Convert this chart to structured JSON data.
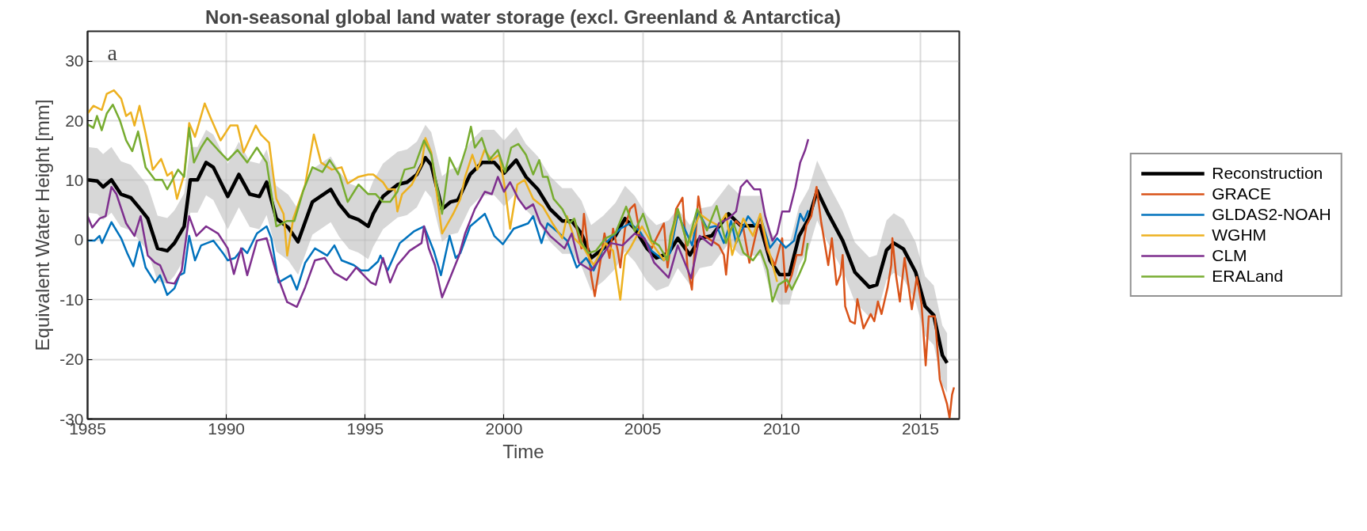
{
  "chart_data": {
    "type": "line",
    "title": "Non-seasonal global land water storage (excl. Greenland & Antarctica)",
    "xlabel": "Time",
    "ylabel": "Equivalent Water Height [mm]",
    "annotations": [
      "a"
    ],
    "xlim": [
      1985,
      2016.4
    ],
    "xticks": [
      1985,
      1990,
      1995,
      2000,
      2005,
      2010,
      2015
    ],
    "ylim": [
      -30,
      35
    ],
    "yticks": [
      -30,
      -20,
      -10,
      0,
      10,
      20,
      30
    ],
    "grid": true,
    "legend": "right",
    "line_style": "solid",
    "series": [
      {
        "name": "Reconstruction",
        "color": "#000000",
        "x": [
          1985.0,
          1985.35,
          1985.56,
          1985.86,
          1986.2,
          1986.56,
          1986.9,
          1987.17,
          1987.52,
          1987.87,
          1988.13,
          1988.48,
          1988.7,
          1988.96,
          1989.27,
          1989.53,
          1990.05,
          1990.45,
          1990.84,
          1991.19,
          1991.45,
          1991.8,
          1992.23,
          1992.58,
          1993.1,
          1993.76,
          1994.07,
          1994.42,
          1994.76,
          1995.11,
          1995.29,
          1995.64,
          1996.17,
          1996.51,
          1996.86,
          1997.17,
          1997.38,
          1997.77,
          1998.08,
          1998.34,
          1998.78,
          1999.21,
          1999.65,
          2000.0,
          2000.44,
          2000.79,
          2001.22,
          2001.66,
          2002.1,
          2002.44,
          2002.79,
          2003.14,
          2003.58,
          2004.01,
          2004.36,
          2004.71,
          2005.15,
          2005.49,
          2005.93,
          2006.26,
          2006.7,
          2007.05,
          2007.48,
          2008.09,
          2008.53,
          2008.97,
          2009.23,
          2009.58,
          2009.93,
          2010.28,
          2010.63,
          2010.98,
          2011.28,
          2011.68,
          2012.2,
          2012.64,
          2013.16,
          2013.43,
          2013.78,
          2014.04,
          2014.39,
          2014.83,
          2015.17,
          2015.48,
          2015.79,
          2015.96
        ],
        "values": [
          10.1,
          9.9,
          8.9,
          10.1,
          7.7,
          7.1,
          5.2,
          3.6,
          -1.4,
          -1.8,
          -0.5,
          2.3,
          10.1,
          10.1,
          13.0,
          12.2,
          7.3,
          11.0,
          7.7,
          7.3,
          9.7,
          3.6,
          2.1,
          -0.3,
          6.4,
          8.5,
          6.0,
          4.0,
          3.4,
          2.3,
          4.4,
          7.3,
          9.3,
          9.7,
          11.0,
          13.8,
          12.6,
          5.2,
          6.4,
          6.7,
          11.0,
          13.0,
          13.0,
          11.2,
          13.4,
          10.6,
          8.5,
          5.2,
          3.2,
          3.2,
          1.1,
          -3.0,
          -1.4,
          0.7,
          3.6,
          1.9,
          -1.4,
          -3.0,
          -2.2,
          0.3,
          -2.5,
          0.3,
          0.7,
          4.4,
          2.4,
          2.4,
          2.4,
          -3.4,
          -5.8,
          -5.8,
          0.7,
          3.6,
          8.3,
          4.4,
          -0.1,
          -5.4,
          -7.9,
          -7.5,
          -1.7,
          -0.5,
          -1.5,
          -5.4,
          -11.1,
          -12.6,
          -19.3,
          -20.6
        ],
        "lower": [
          4.6,
          4.4,
          3.4,
          4.6,
          2.2,
          1.6,
          -0.3,
          -1.9,
          -6.9,
          -7.3,
          -6.0,
          -3.2,
          4.6,
          4.6,
          7.5,
          6.7,
          1.8,
          5.5,
          2.2,
          1.8,
          4.2,
          -1.9,
          -3.4,
          -5.8,
          0.9,
          3.0,
          0.5,
          -1.5,
          -2.1,
          -3.2,
          -1.1,
          1.8,
          3.8,
          4.2,
          5.5,
          8.3,
          7.1,
          -0.3,
          0.9,
          1.2,
          5.5,
          7.5,
          7.5,
          5.7,
          7.9,
          5.1,
          3.0,
          -0.3,
          -2.3,
          -2.3,
          -4.4,
          -8.5,
          -6.9,
          -4.8,
          -1.9,
          -3.6,
          -6.9,
          -8.5,
          -7.7,
          -4.7,
          -7.5,
          -4.7,
          -4.3,
          -0.6,
          -2.6,
          -2.6,
          -2.6,
          -8.4,
          -10.8,
          -10.8,
          -4.3,
          -1.4,
          3.3,
          -0.6,
          -5.1,
          -10.4,
          -12.9,
          -12.5,
          -6.7,
          -5.5,
          -6.5,
          -10.4,
          -16.1,
          -17.6,
          -24.3,
          -25.6
        ],
        "upper": [
          15.6,
          15.4,
          14.4,
          15.6,
          13.2,
          12.6,
          10.7,
          9.1,
          4.1,
          3.7,
          5.0,
          7.8,
          15.6,
          15.6,
          18.5,
          17.7,
          12.8,
          16.5,
          13.2,
          12.8,
          15.2,
          9.1,
          7.6,
          5.2,
          11.9,
          14.0,
          11.5,
          9.5,
          8.9,
          7.8,
          9.9,
          12.8,
          14.8,
          15.2,
          16.5,
          19.3,
          18.1,
          10.7,
          11.9,
          12.2,
          16.5,
          18.5,
          18.5,
          16.7,
          18.9,
          16.1,
          14.0,
          10.7,
          8.7,
          8.7,
          6.6,
          2.5,
          4.1,
          6.2,
          9.1,
          7.4,
          4.1,
          2.5,
          3.3,
          5.3,
          2.5,
          5.3,
          5.7,
          9.4,
          7.4,
          7.4,
          7.4,
          1.6,
          -0.8,
          -0.8,
          5.7,
          8.6,
          13.3,
          9.4,
          4.9,
          -0.4,
          -2.9,
          -2.5,
          3.3,
          4.5,
          3.5,
          -0.4,
          -6.1,
          -7.6,
          -14.3,
          -15.6
        ]
      },
      {
        "name": "GRACE",
        "color": "#d95319",
        "x": [
          2002.53,
          2002.79,
          2002.88,
          2003.14,
          2003.27,
          2003.49,
          2003.62,
          2003.8,
          2003.93,
          2004.1,
          2004.19,
          2004.36,
          2004.54,
          2004.71,
          2004.89,
          2005.15,
          2005.32,
          2005.49,
          2005.76,
          2005.89,
          2006.2,
          2006.26,
          2006.43,
          2006.61,
          2006.77,
          2007.0,
          2007.22,
          2007.48,
          2007.74,
          2007.92,
          2008.0,
          2008.14,
          2008.36,
          2008.62,
          2008.84,
          2009.06,
          2009.23,
          2009.49,
          2009.76,
          2010.02,
          2010.15,
          2010.37,
          2010.54,
          2010.72,
          2010.89,
          2011.07,
          2011.26,
          2011.42,
          2011.68,
          2011.81,
          2011.98,
          2012.12,
          2012.2,
          2012.29,
          2012.47,
          2012.64,
          2012.73,
          2012.95,
          2013.21,
          2013.34,
          2013.47,
          2013.6,
          2013.82,
          2013.95,
          2013.99,
          2014.13,
          2014.26,
          2014.43,
          2014.69,
          2014.87,
          2015.04,
          2015.19,
          2015.3,
          2015.52,
          2015.7,
          2015.96,
          2016.05,
          2016.14,
          2016.21
        ],
        "values": [
          3.6,
          -1.4,
          4.4,
          -5.9,
          -9.4,
          -3.0,
          1.1,
          -3.0,
          1.9,
          -1.8,
          -4.6,
          1.9,
          5.2,
          6.0,
          1.1,
          -0.5,
          -1.4,
          0.3,
          2.8,
          -4.6,
          5.2,
          5.7,
          7.1,
          -4.6,
          -8.3,
          7.3,
          0.7,
          -0.1,
          -0.9,
          -2.5,
          -5.8,
          1.6,
          3.2,
          2.0,
          -3.8,
          0.7,
          4.0,
          -1.7,
          -4.2,
          0.3,
          -8.7,
          -5.8,
          -2.5,
          -2.5,
          2.4,
          4.0,
          8.9,
          3.2,
          -4.2,
          0.3,
          -7.5,
          -5.8,
          -2.5,
          -11.1,
          -13.6,
          -14.0,
          -9.9,
          -14.8,
          -12.4,
          -13.6,
          -10.3,
          -12.4,
          -7.9,
          -4.2,
          0.3,
          -6.2,
          -10.3,
          -3.0,
          -11.6,
          -6.2,
          -10.7,
          -21.0,
          -12.8,
          -12.8,
          -23.4,
          -27.5,
          -29.8,
          -25.9,
          -24.7
        ]
      },
      {
        "name": "GLDAS2-NOAH",
        "color": "#0072bd",
        "x": [
          1985.0,
          1985.25,
          1985.43,
          1985.52,
          1985.86,
          1986.21,
          1986.43,
          1986.65,
          1986.87,
          1987.09,
          1987.43,
          1987.61,
          1987.87,
          1988.13,
          1988.31,
          1988.48,
          1988.66,
          1988.87,
          1989.09,
          1989.53,
          1989.88,
          1990.05,
          1990.31,
          1990.58,
          1990.75,
          1991.1,
          1991.45,
          1991.62,
          1991.88,
          1992.32,
          1992.54,
          1992.84,
          1993.19,
          1993.63,
          1993.89,
          1994.15,
          1994.59,
          1994.85,
          1995.11,
          1995.46,
          1995.55,
          1995.81,
          1996.25,
          1996.77,
          1997.12,
          1997.47,
          1997.73,
          1998.04,
          1998.26,
          1998.43,
          1998.78,
          1999.31,
          1999.65,
          1999.96,
          2000.35,
          2000.87,
          2001.05,
          2001.35,
          2001.57,
          2002.0,
          2002.27,
          2002.62,
          2002.96,
          2003.23,
          2003.66,
          2004.19,
          2004.54,
          2004.89,
          2005.32,
          2005.76,
          2005.99,
          2006.26,
          2006.78,
          2007.0,
          2007.31,
          2007.66,
          2007.92,
          2008.18,
          2008.36,
          2008.79,
          2009.06,
          2009.23,
          2009.58,
          2009.84,
          2010.15,
          2010.45,
          2010.67,
          2010.8,
          2010.96
        ],
        "values": [
          -0.1,
          -0.1,
          0.7,
          -0.5,
          3.0,
          0.3,
          -2.2,
          -4.4,
          -0.3,
          -4.6,
          -7.1,
          -5.9,
          -9.2,
          -8.1,
          -5.9,
          -5.5,
          0.7,
          -3.4,
          -0.9,
          -0.1,
          -2.2,
          -3.4,
          -3.0,
          -1.4,
          -2.2,
          1.1,
          2.3,
          0.3,
          -7.1,
          -5.9,
          -8.3,
          -3.8,
          -1.4,
          -2.6,
          -0.9,
          -3.4,
          -4.2,
          -5.1,
          -5.1,
          -3.6,
          -2.6,
          -5.1,
          -0.5,
          1.5,
          2.3,
          -1.8,
          -5.9,
          0.7,
          -3.0,
          -2.2,
          2.3,
          4.4,
          0.7,
          -0.7,
          1.9,
          2.8,
          4.0,
          -0.5,
          2.8,
          1.1,
          -0.1,
          -4.6,
          -3.0,
          -5.1,
          -0.5,
          1.9,
          2.8,
          1.5,
          -1.8,
          -3.4,
          -2.1,
          4.4,
          -0.9,
          4.8,
          2.0,
          2.4,
          -0.5,
          3.2,
          -0.5,
          4.0,
          2.4,
          4.0,
          -1.3,
          0.3,
          -1.3,
          -0.1,
          4.4,
          3.2,
          5.0
        ]
      },
      {
        "name": "WGHM",
        "color": "#edb120",
        "x": [
          1985.0,
          1985.21,
          1985.51,
          1985.69,
          1985.95,
          1986.21,
          1986.39,
          1986.56,
          1986.69,
          1986.87,
          1987.09,
          1987.35,
          1987.65,
          1987.87,
          1988.04,
          1988.22,
          1988.48,
          1988.66,
          1988.87,
          1989.22,
          1989.44,
          1989.79,
          1990.14,
          1990.4,
          1990.62,
          1991.06,
          1991.24,
          1991.54,
          1991.8,
          1992.06,
          1992.19,
          1992.41,
          1992.84,
          1993.15,
          1993.41,
          1993.8,
          1994.15,
          1994.37,
          1994.76,
          1995.11,
          1995.29,
          1995.64,
          1995.81,
          1996.07,
          1996.16,
          1996.33,
          1996.68,
          1997.03,
          1997.17,
          1997.38,
          1997.77,
          1998.17,
          1998.43,
          1998.6,
          1998.86,
          1999.04,
          1999.3,
          1999.56,
          1999.83,
          2000.04,
          2000.22,
          2000.48,
          2000.74,
          2001.05,
          2001.4,
          2001.75,
          2002.1,
          2002.27,
          2002.53,
          2002.88,
          2003.23,
          2003.66,
          2003.93,
          2004.19,
          2004.36,
          2004.54,
          2004.97,
          2005.32,
          2005.76,
          2005.99,
          2006.26,
          2006.61,
          2007.05,
          2007.4,
          2007.74,
          2008.0,
          2008.22,
          2008.62,
          2008.97,
          2009.23,
          2009.49,
          2009.84
        ],
        "values": [
          21.2,
          22.5,
          21.8,
          24.5,
          25.1,
          23.7,
          20.8,
          21.4,
          19.2,
          22.5,
          17.9,
          11.8,
          13.6,
          10.8,
          11.4,
          6.9,
          11.0,
          19.6,
          17.3,
          22.9,
          20.4,
          16.7,
          19.2,
          19.2,
          14.7,
          19.2,
          17.7,
          16.3,
          6.9,
          4.4,
          -2.6,
          3.6,
          9.3,
          17.7,
          13.0,
          11.8,
          12.2,
          9.5,
          10.6,
          11.0,
          11.0,
          9.7,
          8.5,
          8.5,
          4.8,
          7.7,
          9.3,
          12.6,
          17.1,
          14.7,
          1.1,
          4.4,
          6.9,
          10.6,
          14.3,
          11.8,
          15.1,
          13.4,
          14.3,
          8.5,
          1.9,
          9.3,
          10.1,
          6.9,
          5.6,
          2.8,
          0.3,
          4.0,
          0.3,
          -1.4,
          -4.2,
          -0.5,
          -1.8,
          -10.0,
          -2.6,
          -1.4,
          2.3,
          -0.5,
          -3.4,
          -0.9,
          5.2,
          -0.9,
          4.4,
          3.2,
          2.4,
          4.4,
          -2.5,
          3.6,
          0.7,
          4.4,
          -0.9,
          -7.0
        ]
      },
      {
        "name": "CLM",
        "color": "#7e2f8e",
        "x": [
          1985.0,
          1985.17,
          1985.43,
          1985.65,
          1985.86,
          1986.04,
          1986.39,
          1986.69,
          1986.91,
          1987.17,
          1987.43,
          1987.61,
          1987.87,
          1988.13,
          1988.39,
          1988.66,
          1988.92,
          1989.27,
          1989.7,
          1990.05,
          1990.27,
          1990.53,
          1990.75,
          1991.1,
          1991.45,
          1991.8,
          1992.19,
          1992.54,
          1992.84,
          1993.19,
          1993.54,
          1993.89,
          1994.33,
          1994.68,
          1995.2,
          1995.38,
          1995.64,
          1995.9,
          1996.16,
          1996.6,
          1997.03,
          1997.12,
          1997.29,
          1997.51,
          1997.77,
          1998.08,
          1998.38,
          1998.6,
          1998.95,
          1999.31,
          1999.56,
          1999.78,
          2000.0,
          2000.22,
          2000.52,
          2000.79,
          2001.05,
          2001.31,
          2001.66,
          2002.18,
          2002.44,
          2002.7,
          2003.14,
          2003.49,
          2003.84,
          2004.27,
          2004.71,
          2005.06,
          2005.41,
          2005.93,
          2006.26,
          2006.74,
          2007.05,
          2007.48,
          2007.74,
          2008.09,
          2008.36,
          2008.53,
          2008.75,
          2009.01,
          2009.23,
          2009.41,
          2009.67,
          2009.84,
          2010.02,
          2010.28,
          2010.5,
          2010.67,
          2010.85,
          2010.96
        ],
        "values": [
          4.0,
          2.1,
          3.6,
          4.0,
          8.9,
          7.7,
          2.8,
          0.7,
          4.0,
          -2.6,
          -3.8,
          -4.2,
          -7.1,
          -7.3,
          -5.1,
          4.0,
          0.7,
          2.3,
          1.1,
          -1.4,
          -5.7,
          -1.4,
          -5.9,
          -0.1,
          0.3,
          -5.5,
          -10.4,
          -11.2,
          -7.9,
          -3.4,
          -3.0,
          -5.5,
          -6.7,
          -4.6,
          -7.1,
          -7.5,
          -3.0,
          -7.1,
          -4.2,
          -1.8,
          -0.5,
          2.3,
          -1.4,
          -4.2,
          -9.6,
          -6.1,
          -2.6,
          1.1,
          5.2,
          8.1,
          7.7,
          10.6,
          8.1,
          9.7,
          6.9,
          5.2,
          6.0,
          2.8,
          0.7,
          -1.4,
          1.1,
          -3.8,
          -5.1,
          -3.0,
          -0.5,
          -0.9,
          1.1,
          0.3,
          -3.8,
          -6.3,
          -0.9,
          -6.4,
          0.7,
          -0.9,
          2.8,
          3.6,
          4.8,
          8.9,
          10.0,
          8.5,
          8.5,
          4.0,
          -0.1,
          1.1,
          4.8,
          4.8,
          8.9,
          13.0,
          15.1,
          16.9
        ]
      },
      {
        "name": "ERALand",
        "color": "#77ac30",
        "x": [
          1985.0,
          1985.21,
          1985.34,
          1985.51,
          1985.69,
          1985.91,
          1986.17,
          1986.39,
          1986.61,
          1986.82,
          1987.09,
          1987.43,
          1987.69,
          1987.87,
          1988.26,
          1988.48,
          1988.66,
          1988.83,
          1989.09,
          1989.31,
          1989.7,
          1990.05,
          1990.4,
          1990.75,
          1991.1,
          1991.45,
          1991.8,
          1992.19,
          1992.45,
          1992.76,
          1993.1,
          1993.46,
          1993.72,
          1994.07,
          1994.37,
          1994.76,
          1995.11,
          1995.38,
          1995.64,
          1995.9,
          1996.16,
          1996.42,
          1996.77,
          1997.12,
          1997.38,
          1997.77,
          1998.04,
          1998.34,
          1998.64,
          1998.81,
          1998.95,
          1999.2,
          1999.46,
          1999.78,
          2000.04,
          2000.26,
          2000.52,
          2000.79,
          2001.05,
          2001.27,
          2001.4,
          2001.57,
          2001.79,
          2002.1,
          2002.36,
          2002.53,
          2002.79,
          2003.05,
          2003.31,
          2003.66,
          2004.01,
          2004.4,
          2004.71,
          2005.01,
          2005.32,
          2005.58,
          2005.89,
          2005.99,
          2006.26,
          2006.61,
          2006.96,
          2007.31,
          2007.66,
          2008.0,
          2008.27,
          2008.62,
          2008.97,
          2009.23,
          2009.49,
          2009.67,
          2009.89,
          2010.19,
          2010.37,
          2010.63,
          2010.85,
          2010.94
        ],
        "values": [
          19.4,
          18.8,
          20.8,
          18.4,
          21.2,
          22.7,
          20.0,
          16.7,
          14.9,
          18.2,
          12.2,
          10.1,
          10.1,
          8.5,
          11.8,
          10.6,
          18.8,
          13.0,
          15.5,
          17.1,
          15.1,
          13.4,
          15.1,
          13.0,
          15.5,
          13.0,
          2.3,
          3.2,
          3.2,
          8.1,
          12.2,
          11.4,
          13.4,
          11.0,
          6.4,
          9.3,
          7.7,
          7.7,
          6.4,
          6.4,
          8.1,
          11.8,
          12.2,
          16.7,
          14.3,
          4.4,
          13.8,
          11.0,
          15.5,
          19.0,
          15.5,
          17.1,
          13.4,
          15.1,
          11.4,
          15.5,
          16.1,
          14.3,
          11.0,
          13.4,
          10.6,
          10.6,
          6.9,
          5.2,
          2.8,
          3.6,
          -0.5,
          -2.2,
          -1.8,
          0.3,
          1.1,
          5.6,
          1.5,
          4.4,
          -0.1,
          -0.9,
          -3.4,
          0.7,
          5.2,
          -0.9,
          5.2,
          1.6,
          5.7,
          -0.5,
          2.8,
          -2.1,
          -3.4,
          -1.7,
          -5.0,
          -10.3,
          -7.5,
          -6.6,
          -8.3,
          -5.8,
          -3.4,
          -0.5
        ]
      }
    ]
  }
}
